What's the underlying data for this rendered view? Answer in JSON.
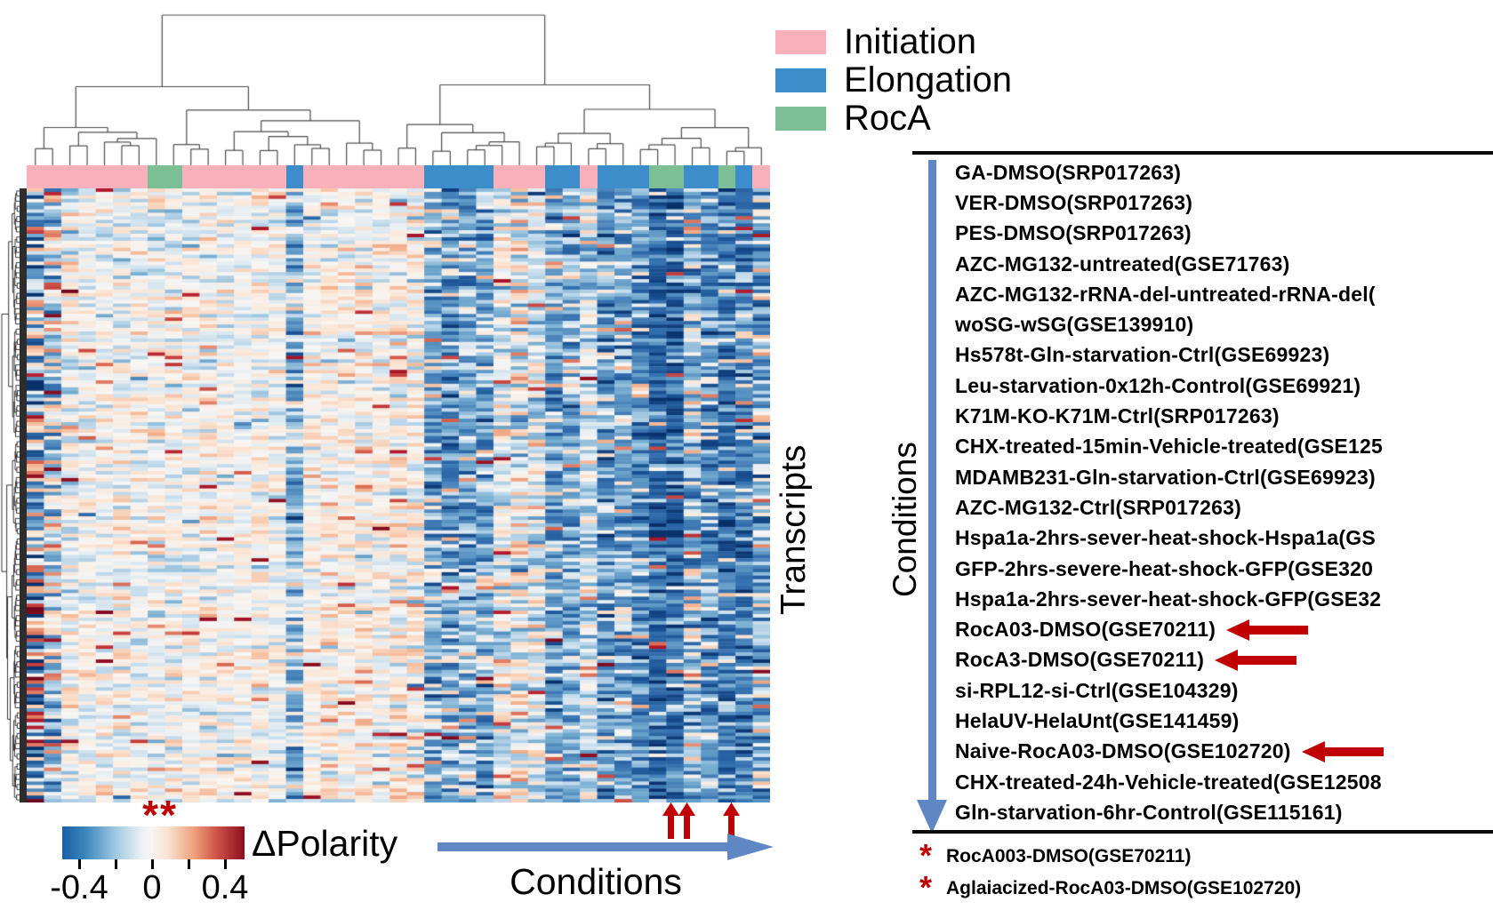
{
  "legend": {
    "items": [
      {
        "label": "Initiation",
        "color": "#F8B0BA"
      },
      {
        "label": "Elongation",
        "color": "#3D8DCB"
      },
      {
        "label": "RocA",
        "color": "#7CBF97"
      }
    ]
  },
  "colorbar": {
    "label": "ΔPolarity",
    "tick_labels": [
      "-0.4",
      "0",
      "0.4"
    ],
    "domain": [
      -0.5,
      0.5
    ],
    "significance_marker": "**",
    "significance_color": "#C00000"
  },
  "axis": {
    "bottom_label": "Conditions",
    "transcripts_label": "Transcripts",
    "right_conditions_label": "Conditions"
  },
  "arrow_colors": {
    "blue": "#5E87C4",
    "red": "#C00000"
  },
  "conditions": {
    "rows": [
      {
        "label": "GA-DMSO(SRP017263)",
        "arrow": false
      },
      {
        "label": "VER-DMSO(SRP017263)",
        "arrow": false
      },
      {
        "label": "PES-DMSO(SRP017263)",
        "arrow": false
      },
      {
        "label": "AZC-MG132-untreated(GSE71763)",
        "arrow": false
      },
      {
        "label": "AZC-MG132-rRNA-del-untreated-rRNA-del(",
        "arrow": false
      },
      {
        "label": "woSG-wSG(GSE139910)",
        "arrow": false
      },
      {
        "label": "Hs578t-Gln-starvation-Ctrl(GSE69923)",
        "arrow": false
      },
      {
        "label": "Leu-starvation-0x12h-Control(GSE69921)",
        "arrow": false
      },
      {
        "label": "K71M-KO-K71M-Ctrl(SRP017263)",
        "arrow": false
      },
      {
        "label": "CHX-treated-15min-Vehicle-treated(GSE125",
        "arrow": false
      },
      {
        "label": "MDAMB231-Gln-starvation-Ctrl(GSE69923)",
        "arrow": false
      },
      {
        "label": "AZC-MG132-Ctrl(SRP017263)",
        "arrow": false
      },
      {
        "label": "Hspa1a-2hrs-sever-heat-shock-Hspa1a(GS",
        "arrow": false
      },
      {
        "label": "GFP-2hrs-severe-heat-shock-GFP(GSE320",
        "arrow": false
      },
      {
        "label": "Hspa1a-2hrs-sever-heat-shock-GFP(GSE32",
        "arrow": false
      },
      {
        "label": "RocA03-DMSO(GSE70211)",
        "arrow": true
      },
      {
        "label": "RocA3-DMSO(GSE70211)",
        "arrow": true
      },
      {
        "label": "si-RPL12-si-Ctrl(GSE104329)",
        "arrow": false
      },
      {
        "label": "HelaUV-HelaUnt(GSE141459)",
        "arrow": false
      },
      {
        "label": "Naive-RocA03-DMSO(GSE102720)",
        "arrow": true
      },
      {
        "label": "CHX-treated-24h-Vehicle-treated(GSE12508",
        "arrow": false
      },
      {
        "label": "Gln-starvation-6hr-Control(GSE115161)",
        "arrow": false
      }
    ]
  },
  "footnotes": [
    {
      "marker": "*",
      "label": "RocA003-DMSO(GSE70211)"
    },
    {
      "marker": "*",
      "label": "Aglaiacized-RocA03-DMSO(GSE102720)"
    }
  ],
  "chart_data": {
    "type": "heatmap",
    "title": "Hierarchically clustered heatmap of ΔPolarity across transcripts (rows) and conditions (columns)",
    "xlabel": "Conditions",
    "ylabel": "Transcripts",
    "value_label": "ΔPolarity",
    "colormap": "RdBu_r (blue = negative ΔPolarity, white ≈ 0, red = positive)",
    "colorbar_domain": [
      -0.5,
      0.5
    ],
    "colorbar_tick_labels": [
      "-0.4",
      "0",
      "0.4"
    ],
    "significance_marker": {
      "text": "**",
      "position": "above left portion of colorbar, red"
    },
    "clustering": {
      "columns": "dendrogram on top",
      "rows": "dense dendrogram on left"
    },
    "column_annotation_legend": [
      {
        "group": "Initiation",
        "color": "#F8B0BA"
      },
      {
        "group": "Elongation",
        "color": "#3D8DCB"
      },
      {
        "group": "RocA",
        "color": "#7CBF97"
      }
    ],
    "column_annotation_segments": [
      {
        "group": "Initiation",
        "n_columns": 7
      },
      {
        "group": "RocA",
        "n_columns": 2
      },
      {
        "group": "Initiation",
        "n_columns": 6
      },
      {
        "group": "Elongation",
        "n_columns": 1
      },
      {
        "group": "Initiation",
        "n_columns": 7
      },
      {
        "group": "Elongation",
        "n_columns": 4
      },
      {
        "group": "Initiation",
        "n_columns": 3
      },
      {
        "group": "Elongation",
        "n_columns": 2
      },
      {
        "group": "Initiation",
        "n_columns": 1
      },
      {
        "group": "Elongation",
        "n_columns": 3
      },
      {
        "group": "RocA",
        "n_columns": 2
      },
      {
        "group": "Elongation",
        "n_columns": 2
      },
      {
        "group": "RocA",
        "n_columns": 1
      },
      {
        "group": "Elongation",
        "n_columns": 1
      },
      {
        "group": "Initiation",
        "n_columns": 1
      }
    ],
    "visual_pattern": "Initiation columns cluster on the left and are mostly near-zero (pale); Elongation and RocA columns cluster on the right and are shifted negative (blue); RocA columns are the darkest blue and are marked with three red up-arrows below the heatmap",
    "red_up_arrow_columns": [
      36,
      37,
      40
    ]
  }
}
